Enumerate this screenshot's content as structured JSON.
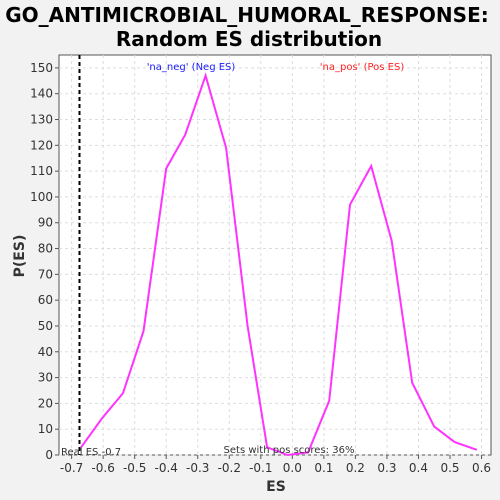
{
  "chart_data": {
    "type": "line",
    "title": "GO_ANTIMICROBIAL_HUMORAL_RESPONSE:",
    "subtitle": "Random ES distribution",
    "xlabel": "ES",
    "ylabel": "P(ES)",
    "xlim": [
      -0.74,
      0.63
    ],
    "ylim": [
      0,
      155
    ],
    "xticks": [
      -0.7,
      -0.6,
      -0.5,
      -0.4,
      -0.3,
      -0.2,
      -0.1,
      0.0,
      0.1,
      0.2,
      0.3,
      0.4,
      0.5,
      0.6
    ],
    "yticks": [
      0,
      10,
      20,
      30,
      40,
      50,
      60,
      70,
      80,
      90,
      100,
      110,
      120,
      130,
      140,
      150
    ],
    "xtick_labels": [
      "-0.7",
      "-0.6",
      "-0.5",
      "-0.4",
      "-0.3",
      "-0.2",
      "-0.1",
      "0.0",
      "0.1",
      "0.2",
      "0.3",
      "0.4",
      "0.5",
      "0.6"
    ],
    "ytick_labels": [
      "0",
      "10",
      "20",
      "30",
      "40",
      "50",
      "60",
      "70",
      "80",
      "90",
      "100",
      "110",
      "120",
      "130",
      "140",
      "150"
    ],
    "grid": true,
    "series": [
      {
        "color": "#ff33ff",
        "x": [
          -0.67,
          -0.605,
          -0.537,
          -0.472,
          -0.4,
          -0.34,
          -0.275,
          -0.21,
          -0.142,
          -0.08,
          -0.015,
          0.05,
          0.117,
          0.183,
          0.25,
          0.315,
          0.38,
          0.45,
          0.515,
          0.585
        ],
        "y": [
          3,
          14,
          24,
          48,
          111,
          124,
          147,
          119,
          50,
          3,
          0,
          1,
          21,
          97,
          112,
          83,
          28,
          11,
          5,
          2
        ]
      }
    ],
    "real_es_line": {
      "x": -0.675,
      "label": "Real ES -0.7"
    },
    "legend": {
      "neg": {
        "label": "'na_neg' (Neg ES)",
        "color": "#1a1aff"
      },
      "pos": {
        "label": "'na_pos' (Pos ES)",
        "color": "#ff2020"
      }
    },
    "annotation": "Sets with pos scores: 36%"
  }
}
